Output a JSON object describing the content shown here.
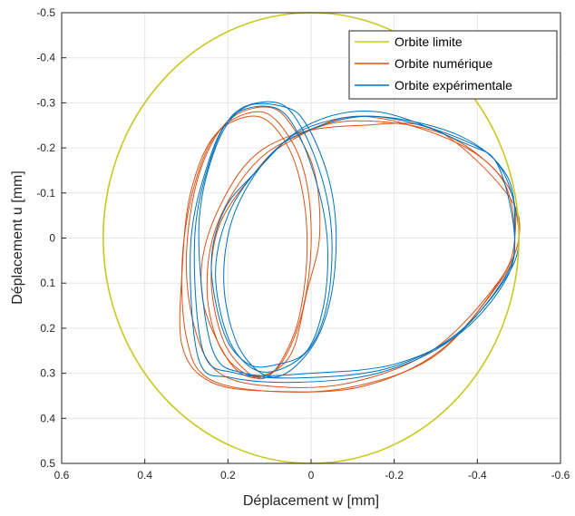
{
  "chart_data": {
    "type": "line",
    "xlabel": "Déplacement w [mm]",
    "ylabel": "Déplacement u [mm]",
    "xlim": [
      0.6,
      -0.6
    ],
    "ylim": [
      0.5,
      -0.5
    ],
    "x_reversed": true,
    "y_reversed": true,
    "grid": true,
    "legend_position": "top-right",
    "x_ticks": [
      0.6,
      0.4,
      0.2,
      0,
      -0.2,
      -0.4,
      -0.6
    ],
    "x_tick_labels": [
      "0.6",
      "0.4",
      "0.2",
      "0",
      "-0.2",
      "-0.4",
      "-0.6"
    ],
    "y_ticks": [
      -0.5,
      -0.4,
      -0.3,
      -0.2,
      -0.1,
      0,
      0.1,
      0.2,
      0.3,
      0.4,
      0.5
    ],
    "y_tick_labels": [
      "-0.5",
      "-0.4",
      "-0.3",
      "-0.2",
      "-0.1",
      "0",
      "0.1",
      "0.2",
      "0.3",
      "0.4",
      "0.5"
    ],
    "series": [
      {
        "name": "Orbite limite",
        "color": "#c8c81e",
        "kind": "circle",
        "center": [
          0,
          0
        ],
        "radius": 0.5
      },
      {
        "name": "Orbite numérique",
        "color": "#d95319",
        "kind": "orbit",
        "loops": [
          {
            "points": [
              [
                0.3,
                0.22
              ],
              [
                0.25,
                0.31
              ],
              [
                0.1,
                0.34
              ],
              [
                -0.1,
                0.33
              ],
              [
                -0.3,
                0.26
              ],
              [
                -0.45,
                0.1
              ],
              [
                -0.49,
                0.0
              ],
              [
                -0.47,
                -0.12
              ],
              [
                -0.32,
                -0.23
              ],
              [
                -0.1,
                -0.26
              ],
              [
                0.05,
                -0.22
              ],
              [
                0.15,
                -0.15
              ],
              [
                0.23,
                -0.02
              ],
              [
                0.25,
                0.12
              ],
              [
                0.22,
                0.24
              ],
              [
                0.16,
                0.3
              ],
              [
                0.1,
                0.3
              ],
              [
                0.06,
                0.26
              ],
              [
                0.02,
                0.16
              ],
              [
                0.0,
                0.02
              ],
              [
                0.01,
                -0.12
              ],
              [
                0.05,
                -0.22
              ],
              [
                0.12,
                -0.28
              ],
              [
                0.22,
                -0.24
              ],
              [
                0.28,
                -0.12
              ],
              [
                0.31,
                0.05
              ],
              [
                0.3,
                0.22
              ]
            ]
          },
          {
            "points": [
              [
                0.28,
                0.2
              ],
              [
                0.22,
                0.3
              ],
              [
                0.08,
                0.33
              ],
              [
                -0.1,
                0.32
              ],
              [
                -0.29,
                0.25
              ],
              [
                -0.44,
                0.11
              ],
              [
                -0.5,
                0.0
              ],
              [
                -0.47,
                -0.1
              ],
              [
                -0.3,
                -0.24
              ],
              [
                -0.12,
                -0.25
              ],
              [
                0.04,
                -0.23
              ],
              [
                0.16,
                -0.16
              ],
              [
                0.25,
                0.0
              ],
              [
                0.26,
                0.14
              ],
              [
                0.2,
                0.27
              ],
              [
                0.14,
                0.31
              ],
              [
                0.08,
                0.29
              ],
              [
                0.04,
                0.24
              ],
              [
                0.01,
                0.12
              ],
              [
                -0.02,
                0.0
              ],
              [
                -0.01,
                -0.14
              ],
              [
                0.04,
                -0.24
              ],
              [
                0.1,
                -0.29
              ],
              [
                0.2,
                -0.26
              ],
              [
                0.27,
                -0.14
              ],
              [
                0.3,
                0.04
              ],
              [
                0.28,
                0.2
              ]
            ]
          },
          {
            "points": [
              [
                0.31,
                0.24
              ],
              [
                0.24,
                0.32
              ],
              [
                0.09,
                0.34
              ],
              [
                -0.12,
                0.33
              ],
              [
                -0.31,
                0.25
              ],
              [
                -0.46,
                0.09
              ],
              [
                -0.49,
                0.01
              ],
              [
                -0.46,
                -0.13
              ],
              [
                -0.33,
                -0.22
              ],
              [
                -0.11,
                -0.27
              ],
              [
                0.06,
                -0.21
              ],
              [
                0.14,
                -0.14
              ],
              [
                0.22,
                -0.03
              ],
              [
                0.24,
                0.1
              ],
              [
                0.21,
                0.23
              ],
              [
                0.15,
                0.3
              ],
              [
                0.11,
                0.31
              ],
              [
                0.07,
                0.27
              ],
              [
                0.03,
                0.18
              ],
              [
                0.01,
                0.04
              ],
              [
                0.02,
                -0.1
              ],
              [
                0.06,
                -0.21
              ],
              [
                0.13,
                -0.27
              ],
              [
                0.23,
                -0.23
              ],
              [
                0.29,
                -0.1
              ],
              [
                0.31,
                0.07
              ],
              [
                0.31,
                0.24
              ]
            ]
          }
        ]
      },
      {
        "name": "Orbite expérimentale",
        "color": "#0072bd",
        "kind": "orbit",
        "loops": [
          {
            "points": [
              [
                0.26,
                0.25
              ],
              [
                0.18,
                0.3
              ],
              [
                0.02,
                0.31
              ],
              [
                -0.18,
                0.29
              ],
              [
                -0.34,
                0.22
              ],
              [
                -0.46,
                0.1
              ],
              [
                -0.5,
                0.0
              ],
              [
                -0.46,
                -0.15
              ],
              [
                -0.36,
                -0.22
              ],
              [
                -0.15,
                -0.27
              ],
              [
                0.02,
                -0.24
              ],
              [
                0.13,
                -0.15
              ],
              [
                0.2,
                -0.05
              ],
              [
                0.23,
                0.08
              ],
              [
                0.2,
                0.22
              ],
              [
                0.14,
                0.29
              ],
              [
                0.07,
                0.29
              ],
              [
                0.0,
                0.24
              ],
              [
                -0.04,
                0.14
              ],
              [
                -0.05,
                0.0
              ],
              [
                -0.03,
                -0.12
              ],
              [
                0.02,
                -0.24
              ],
              [
                0.08,
                -0.3
              ],
              [
                0.18,
                -0.28
              ],
              [
                0.24,
                -0.18
              ],
              [
                0.28,
                0.0
              ],
              [
                0.26,
                0.25
              ]
            ]
          },
          {
            "points": [
              [
                0.24,
                0.24
              ],
              [
                0.16,
                0.3
              ],
              [
                0.0,
                0.3
              ],
              [
                -0.2,
                0.28
              ],
              [
                -0.36,
                0.21
              ],
              [
                -0.47,
                0.09
              ],
              [
                -0.49,
                -0.01
              ],
              [
                -0.47,
                -0.14
              ],
              [
                -0.35,
                -0.23
              ],
              [
                -0.14,
                -0.27
              ],
              [
                0.03,
                -0.23
              ],
              [
                0.12,
                -0.16
              ],
              [
                0.19,
                -0.04
              ],
              [
                0.21,
                0.1
              ],
              [
                0.18,
                0.23
              ],
              [
                0.12,
                0.3
              ],
              [
                0.06,
                0.3
              ],
              [
                -0.01,
                0.23
              ],
              [
                -0.05,
                0.12
              ],
              [
                -0.06,
                -0.02
              ],
              [
                -0.04,
                -0.14
              ],
              [
                0.01,
                -0.25
              ],
              [
                0.06,
                -0.29
              ],
              [
                0.16,
                -0.29
              ],
              [
                0.23,
                -0.2
              ],
              [
                0.27,
                -0.02
              ],
              [
                0.24,
                0.24
              ]
            ]
          },
          {
            "points": [
              [
                0.27,
                0.27
              ],
              [
                0.19,
                0.31
              ],
              [
                0.03,
                0.32
              ],
              [
                -0.16,
                0.3
              ],
              [
                -0.33,
                0.23
              ],
              [
                -0.45,
                0.11
              ],
              [
                -0.49,
                0.01
              ],
              [
                -0.45,
                -0.16
              ],
              [
                -0.37,
                -0.21
              ],
              [
                -0.16,
                -0.28
              ],
              [
                0.01,
                -0.25
              ],
              [
                0.14,
                -0.14
              ],
              [
                0.21,
                -0.06
              ],
              [
                0.24,
                0.06
              ],
              [
                0.21,
                0.21
              ],
              [
                0.15,
                0.28
              ],
              [
                0.08,
                0.28
              ],
              [
                0.01,
                0.25
              ],
              [
                -0.03,
                0.15
              ],
              [
                -0.04,
                0.02
              ],
              [
                -0.02,
                -0.1
              ],
              [
                0.03,
                -0.23
              ],
              [
                0.09,
                -0.29
              ],
              [
                0.19,
                -0.27
              ],
              [
                0.25,
                -0.16
              ],
              [
                0.29,
                0.02
              ],
              [
                0.27,
                0.27
              ]
            ]
          }
        ]
      }
    ]
  }
}
